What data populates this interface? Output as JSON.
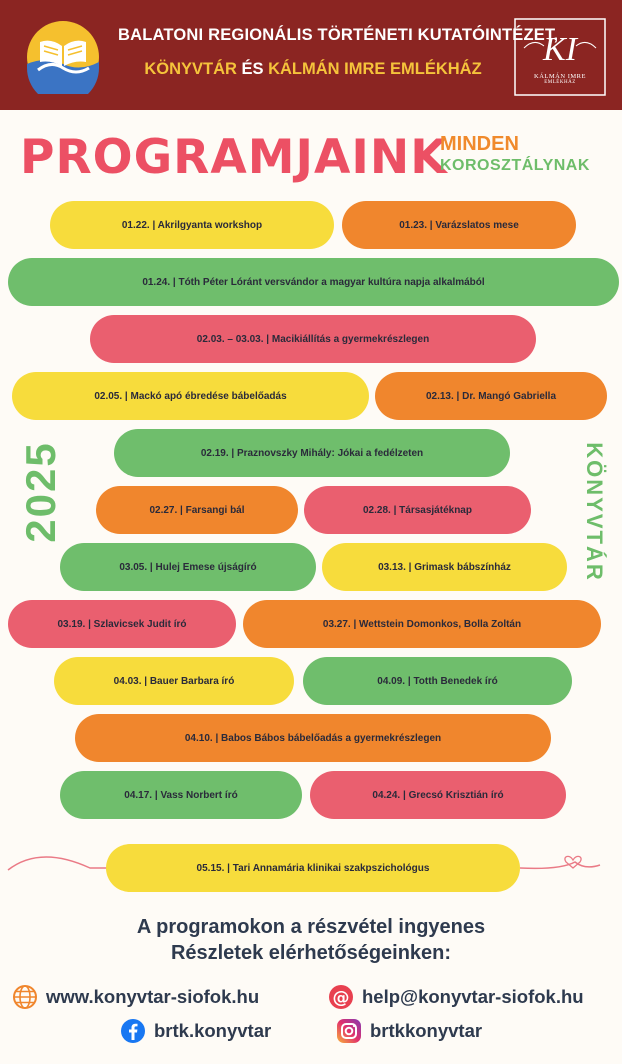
{
  "header": {
    "line1": "BALATONI REGIONÁLIS TÖRTÉNETI KUTATÓINTÉZET,",
    "line2_part1": "KÖNYVTÁR",
    "line2_part2": " ÉS ",
    "line2_part3": "KÁLMÁN IMRE EMLÉKHÁZ",
    "logo_right_monogram": "KI",
    "logo_right_caption": "KÁLMÁN IMRE",
    "logo_right_caption2": "EMLÉKHÁZ"
  },
  "title": "PROGRAMJAINK",
  "subtitle_line1": "MINDEN",
  "subtitle_line2": "KOROSZTÁLYNAK",
  "year": "2025",
  "side_label": "KÖNYVTÁR",
  "programs": [
    {
      "text": "01.22. | Akrilgyanta workshop",
      "color": "yellow"
    },
    {
      "text": "01.23. | Varázslatos mese",
      "color": "orange"
    },
    {
      "text": "01.24. | Tóth Péter Lóránt versvándor a magyar kultúra napja alkalmából",
      "color": "green"
    },
    {
      "text": "02.03. – 03.03. | Macikiállítás a gyermekrészlegen",
      "color": "pink"
    },
    {
      "text": "02.05. | Mackó apó ébredése bábelőadás",
      "color": "yellow"
    },
    {
      "text": "02.13. | Dr. Mangó Gabriella",
      "color": "orange"
    },
    {
      "text": "02.19. | Praznovszky Mihály: Jókai a fedélzeten",
      "color": "green"
    },
    {
      "text": "02.27. | Farsangi bál",
      "color": "orange"
    },
    {
      "text": "02.28. | Társasjátéknap",
      "color": "pink"
    },
    {
      "text": "03.05. | Hulej Emese újságíró",
      "color": "green"
    },
    {
      "text": "03.13. | Grimask bábszínház",
      "color": "yellow"
    },
    {
      "text": "03.19. | Szlavicsek Judit író",
      "color": "pink"
    },
    {
      "text": "03.27. | Wettstein Domonkos, Bolla Zoltán",
      "color": "orange"
    },
    {
      "text": "04.03. | Bauer Barbara író",
      "color": "yellow"
    },
    {
      "text": "04.09. | Totth Benedek író",
      "color": "green"
    },
    {
      "text": "04.10. | Babos Bábos bábelőadás a gyermekrészlegen",
      "color": "orange"
    },
    {
      "text": "04.17. | Vass Norbert író",
      "color": "green"
    },
    {
      "text": "04.24. | Grecsó Krisztián író",
      "color": "pink"
    },
    {
      "text": "05.15. | Tari Annamária klinikai szakpszichológus",
      "color": "yellow"
    }
  ],
  "footer": {
    "line1": "A programokon a részvétel ingyenes",
    "line2": "Részletek elérhetőségeinken:",
    "website": "www.konyvtar-siofok.hu",
    "email": "help@konyvtar-siofok.hu",
    "facebook": "brtk.konyvtar",
    "instagram": "brtkkonyvtar"
  },
  "colors": {
    "header_bg": "#8b2522",
    "yellow": "#f7dc3c",
    "orange": "#f0862d",
    "green": "#6fbe6c",
    "pink": "#ea5f6f",
    "title": "#ec5064"
  }
}
